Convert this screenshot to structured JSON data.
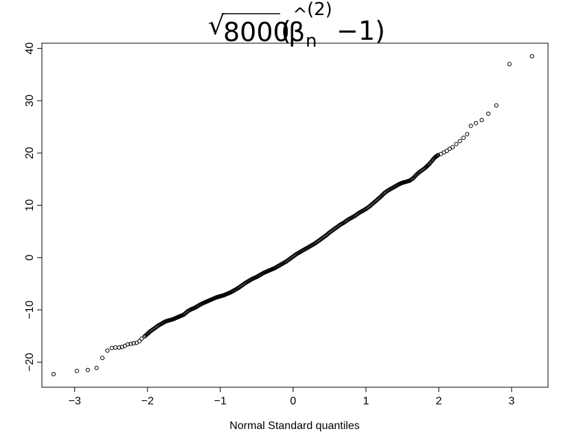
{
  "chart_data": {
    "type": "scatter",
    "title": {
      "radical": "√",
      "radicand": "8000",
      "open_paren": "(",
      "hat": "^",
      "beta": "β",
      "subscript": "n",
      "superscript": "(2)",
      "minus_one": "−1)"
    },
    "xlabel": "Normal Standard quantiles",
    "ylabel": "",
    "xlim": [
      -3.45,
      3.5
    ],
    "ylim": [
      -24.8,
      41.0
    ],
    "xticks": [
      -3,
      -2,
      -1,
      0,
      1,
      2,
      3
    ],
    "xtick_labels": [
      "−3",
      "−2",
      "−1",
      "0",
      "1",
      "2",
      "3"
    ],
    "yticks": [
      -20,
      -10,
      0,
      10,
      20,
      30,
      40
    ],
    "ytick_labels": [
      "−20",
      "−10",
      "0",
      "10",
      "20",
      "30",
      "40"
    ],
    "grid": false,
    "marker": "open-circle",
    "n_points": 8000,
    "series": [
      {
        "points": [
          [
            -3.29,
            -22.3
          ],
          [
            -2.97,
            -21.7
          ],
          [
            -2.82,
            -21.5
          ],
          [
            -2.7,
            -21.1
          ],
          [
            -2.62,
            -19.2
          ],
          [
            -2.55,
            -17.8
          ],
          [
            -2.49,
            -17.3
          ],
          [
            -2.44,
            -17.2
          ],
          [
            -2.39,
            -17.2
          ],
          [
            -2.35,
            -17.1
          ],
          [
            -2.31,
            -16.9
          ],
          [
            -2.27,
            -16.6
          ],
          [
            -2.23,
            -16.5
          ],
          [
            -2.19,
            -16.4
          ],
          [
            -2.15,
            -16.3
          ],
          [
            -2.11,
            -16.0
          ],
          [
            -2.08,
            -15.5
          ],
          [
            -2.04,
            -15.1
          ],
          [
            -2.0,
            -14.6
          ],
          [
            -1.97,
            -14.2
          ],
          [
            -1.93,
            -13.8
          ],
          [
            -1.89,
            -13.4
          ],
          [
            -1.85,
            -13.0
          ],
          [
            -1.8,
            -12.6
          ],
          [
            -1.75,
            -12.2
          ],
          [
            -1.7,
            -12.0
          ],
          [
            -1.65,
            -11.8
          ],
          [
            -1.6,
            -11.5
          ],
          [
            -1.55,
            -11.2
          ],
          [
            -1.5,
            -10.9
          ],
          [
            -1.45,
            -10.3
          ],
          [
            -1.4,
            -9.9
          ],
          [
            -1.35,
            -9.6
          ],
          [
            -1.3,
            -9.2
          ],
          [
            -1.25,
            -8.8
          ],
          [
            -1.2,
            -8.5
          ],
          [
            -1.15,
            -8.2
          ],
          [
            -1.1,
            -7.9
          ],
          [
            -1.05,
            -7.6
          ],
          [
            -1.0,
            -7.4
          ],
          [
            -0.95,
            -7.2
          ],
          [
            -0.9,
            -6.9
          ],
          [
            -0.85,
            -6.6
          ],
          [
            -0.8,
            -6.2
          ],
          [
            -0.75,
            -5.8
          ],
          [
            -0.7,
            -5.3
          ],
          [
            -0.65,
            -4.8
          ],
          [
            -0.6,
            -4.4
          ],
          [
            -0.55,
            -4.0
          ],
          [
            -0.5,
            -3.7
          ],
          [
            -0.45,
            -3.3
          ],
          [
            -0.4,
            -2.9
          ],
          [
            -0.35,
            -2.6
          ],
          [
            -0.3,
            -2.3
          ],
          [
            -0.25,
            -2.0
          ],
          [
            -0.2,
            -1.6
          ],
          [
            -0.15,
            -1.2
          ],
          [
            -0.1,
            -0.8
          ],
          [
            -0.05,
            -0.3
          ],
          [
            0.0,
            0.2
          ],
          [
            0.05,
            0.7
          ],
          [
            0.1,
            1.1
          ],
          [
            0.15,
            1.5
          ],
          [
            0.2,
            1.9
          ],
          [
            0.25,
            2.3
          ],
          [
            0.3,
            2.7
          ],
          [
            0.35,
            3.2
          ],
          [
            0.4,
            3.7
          ],
          [
            0.45,
            4.2
          ],
          [
            0.5,
            4.8
          ],
          [
            0.55,
            5.3
          ],
          [
            0.6,
            5.8
          ],
          [
            0.65,
            6.3
          ],
          [
            0.7,
            6.7
          ],
          [
            0.75,
            7.2
          ],
          [
            0.8,
            7.6
          ],
          [
            0.85,
            8.0
          ],
          [
            0.9,
            8.5
          ],
          [
            0.95,
            8.9
          ],
          [
            1.0,
            9.3
          ],
          [
            1.05,
            9.8
          ],
          [
            1.1,
            10.4
          ],
          [
            1.15,
            11.0
          ],
          [
            1.2,
            11.6
          ],
          [
            1.25,
            12.3
          ],
          [
            1.3,
            12.8
          ],
          [
            1.35,
            13.2
          ],
          [
            1.4,
            13.6
          ],
          [
            1.45,
            14.0
          ],
          [
            1.5,
            14.3
          ],
          [
            1.55,
            14.5
          ],
          [
            1.6,
            14.7
          ],
          [
            1.65,
            15.2
          ],
          [
            1.69,
            15.8
          ],
          [
            1.73,
            16.3
          ],
          [
            1.77,
            16.7
          ],
          [
            1.81,
            17.1
          ],
          [
            1.84,
            17.5
          ],
          [
            1.87,
            17.9
          ],
          [
            1.9,
            18.4
          ],
          [
            1.93,
            18.9
          ],
          [
            1.96,
            19.3
          ],
          [
            1.99,
            19.6
          ],
          [
            2.03,
            19.8
          ],
          [
            2.07,
            20.1
          ],
          [
            2.11,
            20.4
          ],
          [
            2.15,
            20.8
          ],
          [
            2.19,
            21.1
          ],
          [
            2.24,
            21.7
          ],
          [
            2.29,
            22.3
          ],
          [
            2.34,
            22.9
          ],
          [
            2.39,
            23.6
          ],
          [
            2.44,
            25.2
          ],
          [
            2.51,
            25.7
          ],
          [
            2.59,
            26.3
          ],
          [
            2.68,
            27.5
          ],
          [
            2.79,
            29.1
          ],
          [
            2.97,
            37.0
          ],
          [
            3.28,
            38.5
          ]
        ]
      }
    ]
  }
}
